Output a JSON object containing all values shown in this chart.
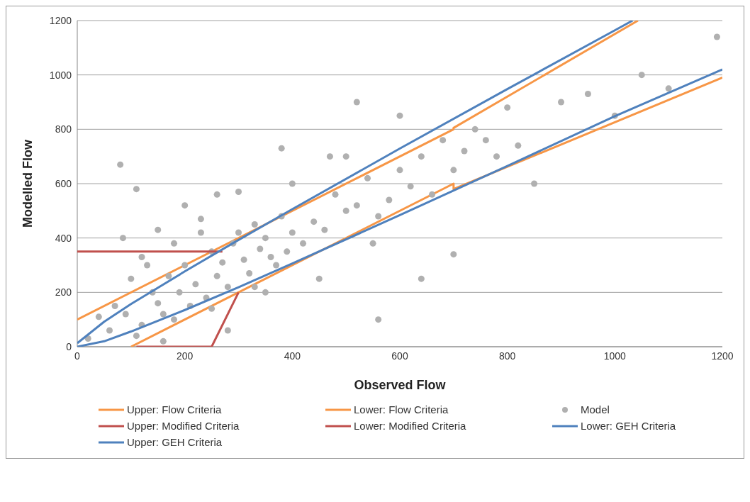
{
  "chart_data": {
    "type": "line",
    "xlabel": "Observed Flow",
    "ylabel": "Modelled Flow",
    "xlim": [
      0,
      1200
    ],
    "ylim": [
      0,
      1200
    ],
    "xticks": [
      0,
      200,
      400,
      600,
      800,
      1000,
      1200
    ],
    "yticks": [
      0,
      200,
      400,
      600,
      800,
      1000,
      1200
    ],
    "grid": "y",
    "legend": "bottom",
    "marker": "none",
    "series": [
      {
        "name": "Upper: Flow Criteria",
        "color": "#f79646",
        "x": [
          0,
          700,
          700,
          1043
        ],
        "values": [
          100,
          800,
          805,
          1200
        ]
      },
      {
        "name": "Lower: Flow Criteria",
        "color": "#f79646",
        "x": [
          100,
          700,
          700,
          1200
        ],
        "values": [
          0,
          600,
          580,
          990
        ]
      },
      {
        "name": "Model",
        "type": "scatter",
        "marker": "circle",
        "color": "#b0b0b0",
        "x": [
          20,
          40,
          60,
          70,
          80,
          90,
          100,
          110,
          120,
          130,
          140,
          150,
          160,
          170,
          180,
          190,
          200,
          210,
          220,
          230,
          240,
          250,
          260,
          270,
          280,
          290,
          300,
          310,
          320,
          330,
          340,
          350,
          360,
          370,
          380,
          390,
          400,
          420,
          440,
          460,
          480,
          500,
          520,
          540,
          560,
          580,
          600,
          620,
          640,
          660,
          680,
          700,
          720,
          740,
          760,
          780,
          800,
          820,
          850,
          900,
          950,
          1000,
          1050,
          1100,
          1190,
          85,
          110,
          150,
          200,
          250,
          300,
          350,
          400,
          450,
          500,
          550,
          600,
          120,
          180,
          230,
          280,
          330,
          520,
          560,
          700,
          470,
          380,
          260,
          160,
          640
        ],
        "values": [
          30,
          110,
          60,
          150,
          670,
          120,
          250,
          580,
          80,
          300,
          200,
          160,
          120,
          260,
          380,
          200,
          300,
          150,
          230,
          420,
          180,
          350,
          260,
          310,
          220,
          380,
          420,
          320,
          270,
          450,
          360,
          400,
          330,
          300,
          480,
          350,
          420,
          380,
          460,
          430,
          560,
          500,
          520,
          620,
          480,
          540,
          650,
          590,
          700,
          560,
          760,
          650,
          720,
          800,
          760,
          700,
          880,
          740,
          600,
          900,
          930,
          850,
          1000,
          950,
          1140,
          400,
          40,
          430,
          520,
          140,
          570,
          200,
          600,
          250,
          700,
          380,
          850,
          330,
          100,
          470,
          60,
          220,
          900,
          100,
          340,
          700,
          730,
          560,
          20,
          250
        ]
      },
      {
        "name": "Upper: Modified Criteria",
        "color": "#c0504d",
        "x": [
          0,
          270
        ],
        "values": [
          350,
          350
        ]
      },
      {
        "name": "Lower: Modified Criteria",
        "color": "#c0504d",
        "x": [
          110,
          250,
          300
        ],
        "values": [
          0,
          0,
          200
        ]
      },
      {
        "name": "Lower: GEH Criteria",
        "color": "#4f81bd",
        "x": [
          0,
          50,
          100,
          200,
          300,
          400,
          600,
          800,
          1000,
          1200
        ],
        "values": [
          0,
          20,
          56,
          135,
          219,
          306,
          484,
          665,
          848,
          1020
        ]
      },
      {
        "name": "Upper: GEH Criteria",
        "color": "#4f81bd",
        "x": [
          0,
          50,
          100,
          200,
          300,
          400,
          600,
          800,
          1000,
          1033
        ],
        "values": [
          13,
          92,
          157,
          277,
          393,
          506,
          729,
          948,
          1164,
          1200
        ]
      }
    ]
  }
}
